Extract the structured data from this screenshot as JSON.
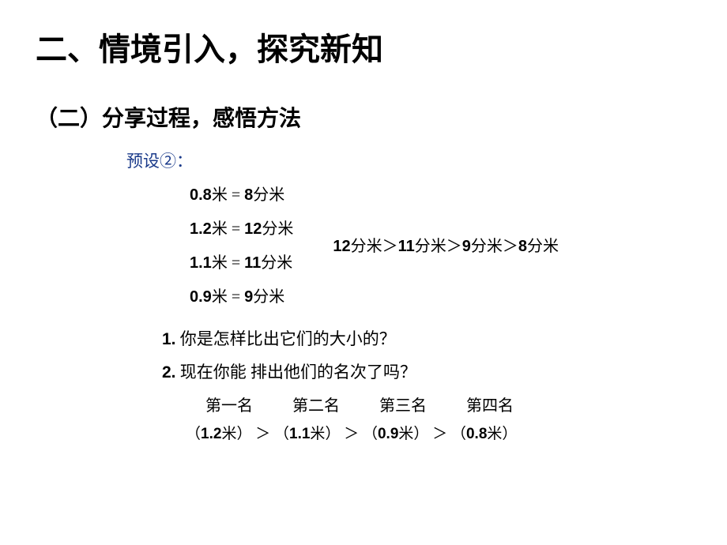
{
  "title": {
    "main": "二、情境引入，探究新知",
    "sub": "（二）分享过程，感悟方法"
  },
  "preset": {
    "label": "预设②：",
    "color": "#1a3a8a"
  },
  "conversions": [
    {
      "left_num": "0.8",
      "left_unit": "米",
      "eq": " = ",
      "right_num": "8",
      "right_unit": "分米"
    },
    {
      "left_num": "1.2",
      "left_unit": "米",
      "eq": " = ",
      "right_num": "12",
      "right_unit": "分米"
    },
    {
      "left_num": "1.1",
      "left_unit": "米",
      "eq": " = ",
      "right_num": "11",
      "right_unit": "分米"
    },
    {
      "left_num": "0.9",
      "left_unit": "米",
      "eq": " = ",
      "right_num": "9",
      "right_unit": "分米"
    }
  ],
  "comparison": {
    "parts": [
      {
        "num": "12",
        "unit": "分米"
      },
      {
        "num": "11",
        "unit": "分米"
      },
      {
        "num": "9",
        "unit": "分米"
      },
      {
        "num": "8",
        "unit": "分米"
      }
    ],
    "gt": "＞"
  },
  "questions": [
    {
      "num": "1.",
      "text": " 你是怎样比出它们的大小的？"
    },
    {
      "num": "2.",
      "text": " 现在你能 排出他们的名次了吗？"
    }
  ],
  "ranking": {
    "labels": [
      "第一名",
      "第二名",
      "第三名",
      "第四名"
    ],
    "values": [
      {
        "num": "1.2",
        "unit": "米"
      },
      {
        "num": "1.1",
        "unit": "米"
      },
      {
        "num": "0.9",
        "unit": "米"
      },
      {
        "num": "0.8",
        "unit": "米"
      }
    ],
    "gt": " ＞ "
  },
  "colors": {
    "text": "#000000",
    "background": "#ffffff",
    "preset_color": "#1a3a8a"
  },
  "fonts": {
    "title_size": 40,
    "subtitle_size": 28,
    "body_size": 20
  }
}
